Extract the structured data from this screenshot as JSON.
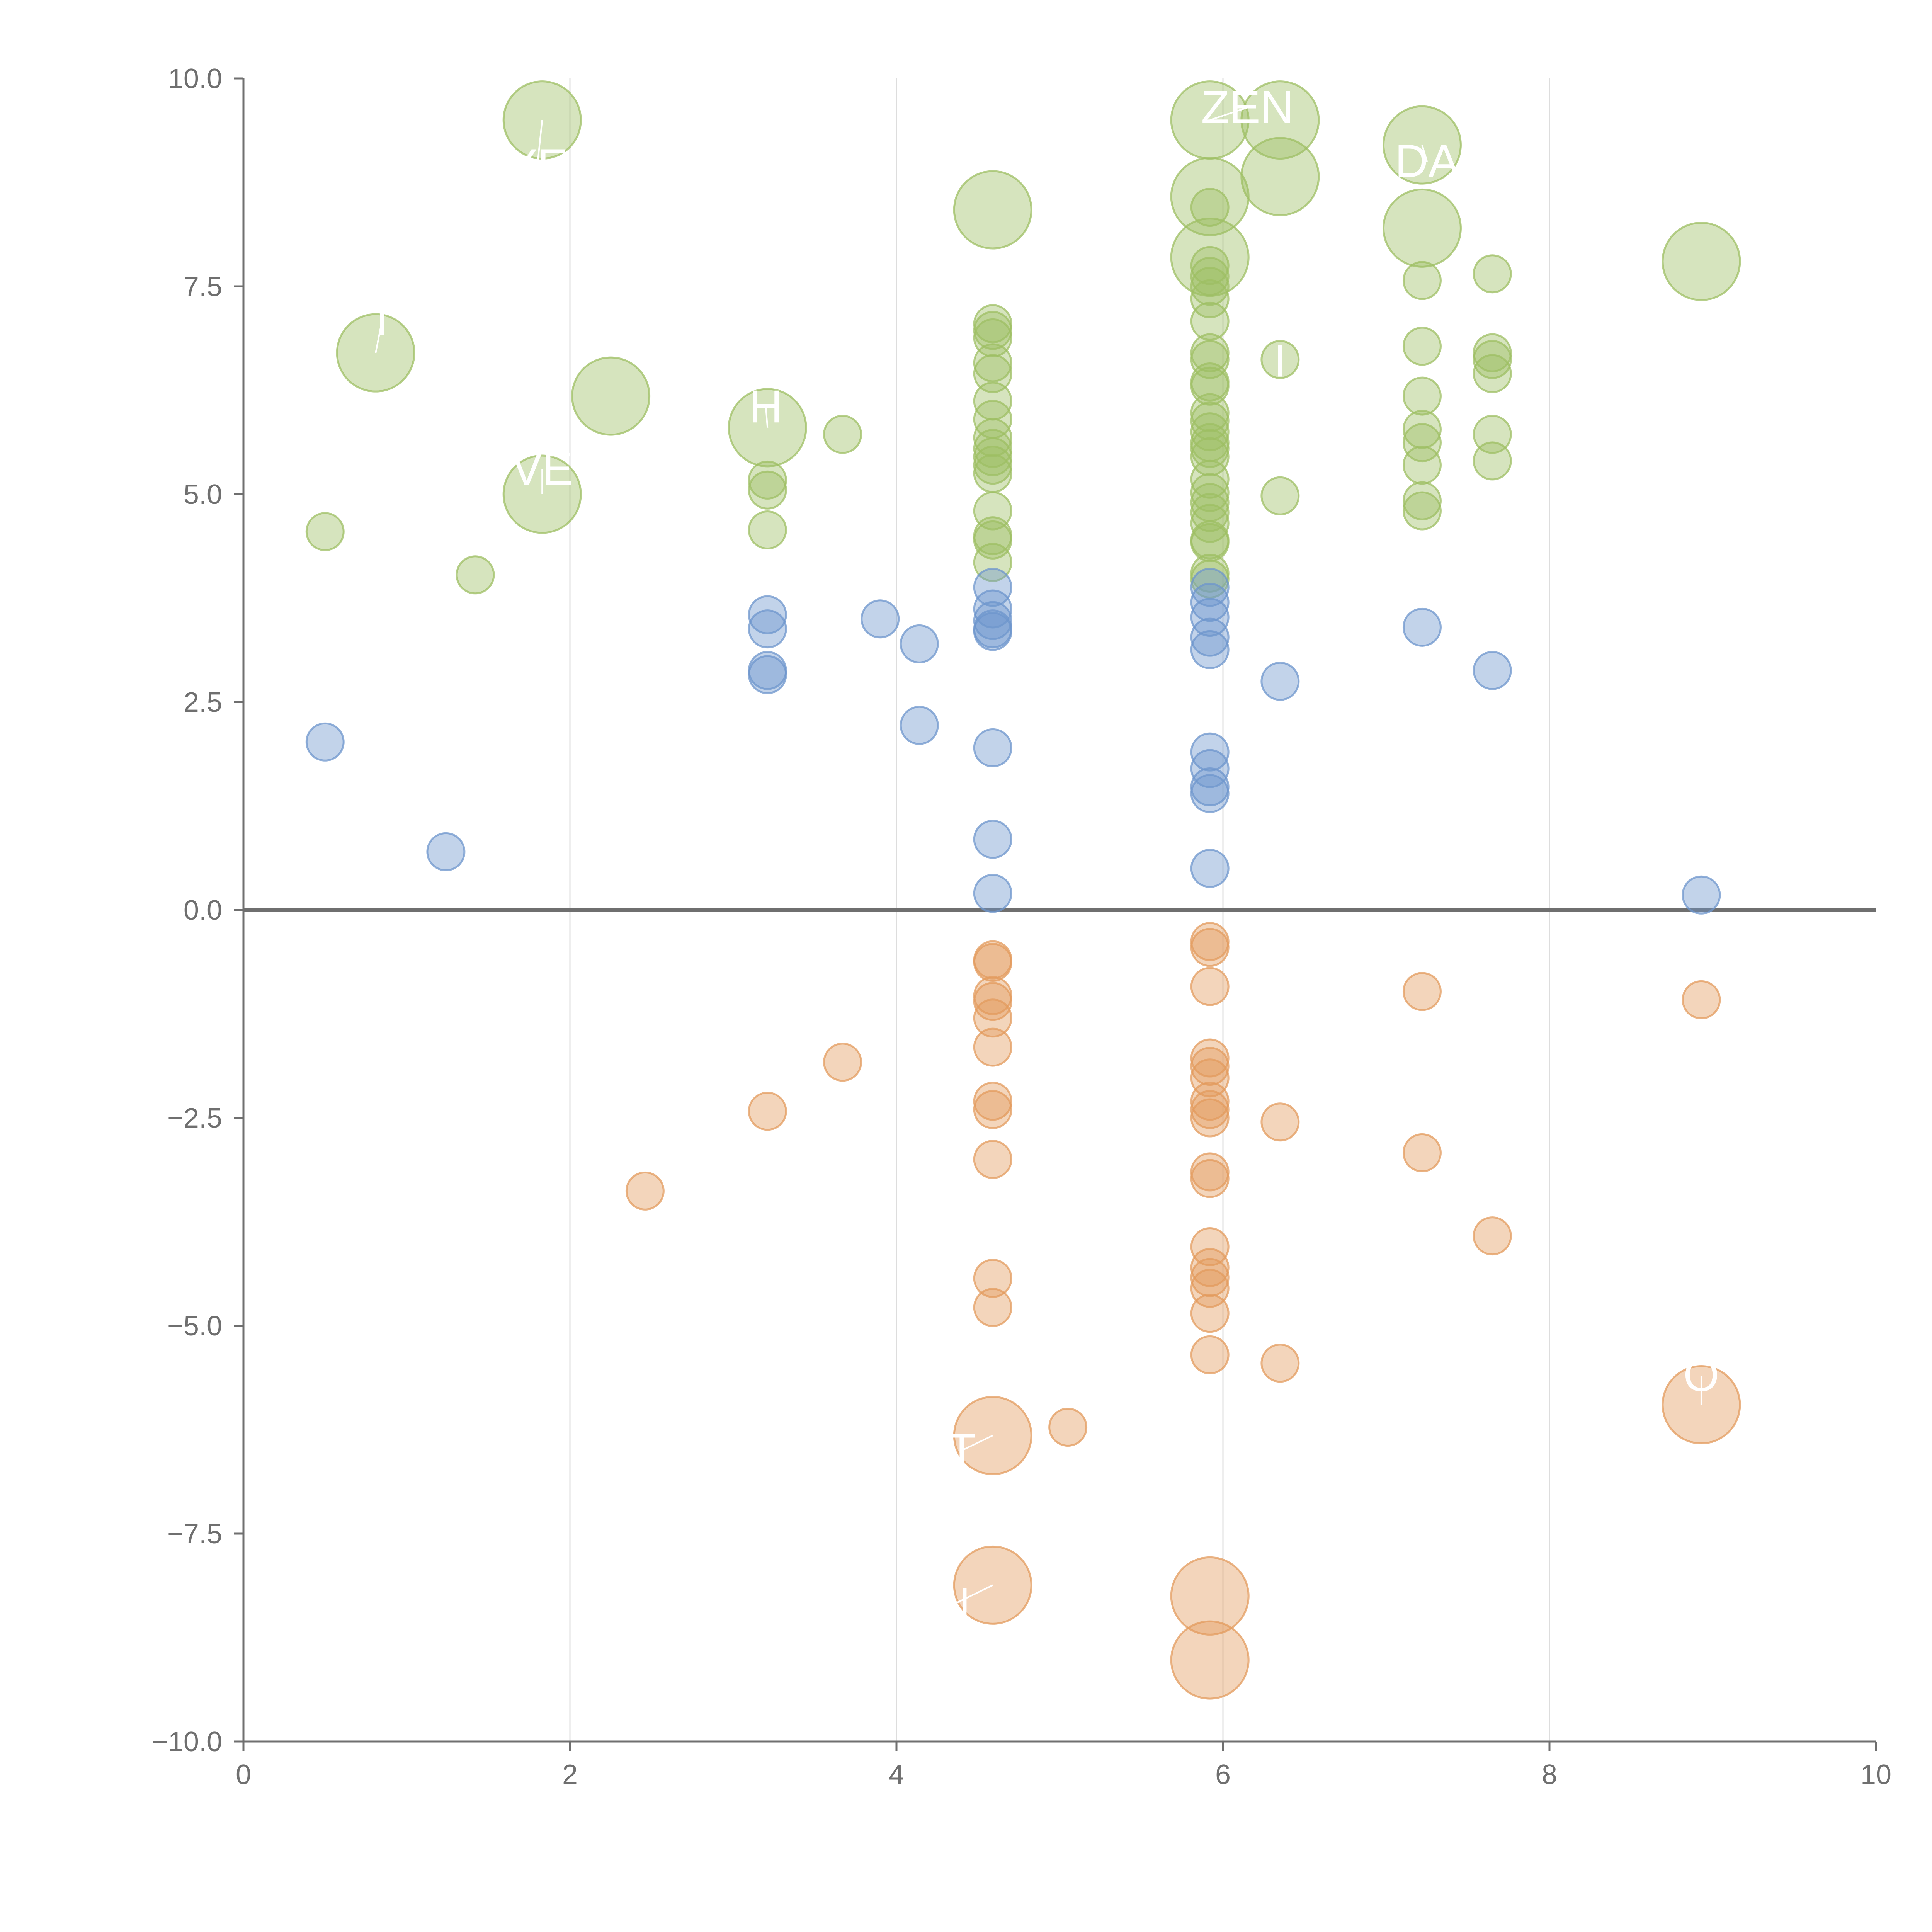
{
  "chart_data": {
    "type": "scatter",
    "title": "",
    "xlabel": "",
    "ylabel": "",
    "xlim": [
      0,
      10
    ],
    "ylim": [
      -10,
      10
    ],
    "grid": "vertical",
    "zero_line": true,
    "legend": "none",
    "x_ticks": [
      "0",
      "2",
      "4",
      "6",
      "8",
      "10"
    ],
    "y_ticks": [
      "10.0",
      "7.5",
      "5.0",
      "2.5",
      "0.0",
      "−2.5",
      "−5.0",
      "−7.5",
      "−10.0"
    ],
    "colors": {
      "green": "#9dbf63",
      "blue": "#6e95cc",
      "orange": "#e39b5e",
      "axis": "#6f6f6f",
      "grid": "#dddddd",
      "annotation": "#ffffff"
    },
    "series": [
      {
        "name": "green",
        "color": "#9dbf63",
        "points": [
          [
            0.5,
            4.55,
            1
          ],
          [
            1.42,
            4.03,
            1
          ],
          [
            0.81,
            6.7,
            2
          ],
          [
            1.83,
            9.5,
            2
          ],
          [
            1.83,
            5.0,
            2
          ],
          [
            2.25,
            6.18,
            2
          ],
          [
            3.21,
            5.8,
            2
          ],
          [
            3.21,
            5.17,
            1
          ],
          [
            3.21,
            5.05,
            1
          ],
          [
            3.21,
            4.57,
            1
          ],
          [
            3.67,
            5.72,
            1
          ],
          [
            4.59,
            8.42,
            2
          ],
          [
            4.59,
            7.05,
            1
          ],
          [
            4.59,
            6.97,
            1
          ],
          [
            4.59,
            6.88,
            1
          ],
          [
            4.59,
            6.58,
            1
          ],
          [
            4.59,
            6.45,
            1
          ],
          [
            4.59,
            6.12,
            1
          ],
          [
            4.59,
            5.9,
            1
          ],
          [
            4.59,
            5.68,
            1
          ],
          [
            4.59,
            5.55,
            1
          ],
          [
            4.59,
            5.45,
            1
          ],
          [
            4.59,
            5.35,
            1
          ],
          [
            4.59,
            5.25,
            1
          ],
          [
            4.59,
            4.8,
            1
          ],
          [
            4.59,
            4.5,
            1
          ],
          [
            4.59,
            4.45,
            1
          ],
          [
            4.59,
            4.18,
            1
          ],
          [
            5.92,
            9.5,
            2
          ],
          [
            5.92,
            8.58,
            2
          ],
          [
            5.92,
            8.45,
            1
          ],
          [
            5.92,
            7.85,
            2
          ],
          [
            5.92,
            7.75,
            1
          ],
          [
            5.92,
            7.62,
            1
          ],
          [
            5.92,
            7.5,
            1
          ],
          [
            5.92,
            7.35,
            1
          ],
          [
            5.92,
            7.08,
            1
          ],
          [
            5.92,
            6.7,
            1
          ],
          [
            5.92,
            6.62,
            1
          ],
          [
            5.92,
            6.35,
            1
          ],
          [
            5.92,
            6.3,
            1
          ],
          [
            5.92,
            5.98,
            1
          ],
          [
            5.92,
            5.88,
            1
          ],
          [
            5.92,
            5.75,
            1
          ],
          [
            5.92,
            5.62,
            1
          ],
          [
            5.92,
            5.55,
            1
          ],
          [
            5.92,
            5.45,
            1
          ],
          [
            5.92,
            5.18,
            1
          ],
          [
            5.92,
            5.02,
            1
          ],
          [
            5.92,
            4.9,
            1
          ],
          [
            5.92,
            4.78,
            1
          ],
          [
            5.92,
            4.65,
            1
          ],
          [
            5.92,
            4.45,
            1
          ],
          [
            5.92,
            4.42,
            1
          ],
          [
            5.92,
            4.05,
            1
          ],
          [
            5.92,
            3.98,
            1
          ],
          [
            6.35,
            9.5,
            2
          ],
          [
            6.35,
            8.82,
            2
          ],
          [
            6.35,
            6.62,
            1
          ],
          [
            6.35,
            4.98,
            1
          ],
          [
            7.22,
            9.2,
            2
          ],
          [
            7.22,
            8.2,
            2
          ],
          [
            7.22,
            7.57,
            1
          ],
          [
            7.22,
            6.78,
            1
          ],
          [
            7.22,
            6.18,
            1
          ],
          [
            7.22,
            5.78,
            1
          ],
          [
            7.22,
            5.62,
            1
          ],
          [
            7.22,
            5.35,
            1
          ],
          [
            7.22,
            4.92,
            1
          ],
          [
            7.22,
            4.8,
            1
          ],
          [
            7.65,
            7.65,
            1
          ],
          [
            7.65,
            6.7,
            1
          ],
          [
            7.65,
            6.62,
            1
          ],
          [
            7.65,
            6.45,
            1
          ],
          [
            7.65,
            5.72,
            1
          ],
          [
            7.65,
            5.4,
            1
          ],
          [
            8.93,
            7.8,
            2
          ]
        ]
      },
      {
        "name": "blue",
        "color": "#6e95cc",
        "points": [
          [
            0.5,
            2.02,
            1
          ],
          [
            1.24,
            0.7,
            1
          ],
          [
            3.21,
            3.55,
            1
          ],
          [
            3.21,
            3.38,
            1
          ],
          [
            3.21,
            2.88,
            1
          ],
          [
            3.21,
            2.83,
            1
          ],
          [
            3.9,
            3.5,
            1
          ],
          [
            4.14,
            3.2,
            1
          ],
          [
            4.14,
            2.22,
            1
          ],
          [
            4.59,
            3.88,
            1
          ],
          [
            4.59,
            3.62,
            1
          ],
          [
            4.59,
            3.48,
            1
          ],
          [
            4.59,
            3.38,
            1
          ],
          [
            4.59,
            3.35,
            1
          ],
          [
            4.59,
            1.95,
            1
          ],
          [
            4.59,
            0.85,
            1
          ],
          [
            4.59,
            0.2,
            1
          ],
          [
            5.92,
            3.88,
            1
          ],
          [
            5.92,
            3.7,
            1
          ],
          [
            5.92,
            3.52,
            1
          ],
          [
            5.92,
            3.28,
            1
          ],
          [
            5.92,
            3.13,
            1
          ],
          [
            5.92,
            1.9,
            1
          ],
          [
            5.92,
            1.7,
            1
          ],
          [
            5.92,
            1.48,
            1
          ],
          [
            5.92,
            1.4,
            1
          ],
          [
            5.92,
            0.5,
            1
          ],
          [
            6.35,
            2.75,
            1
          ],
          [
            7.22,
            3.4,
            1
          ],
          [
            7.65,
            2.88,
            1
          ],
          [
            8.93,
            0.18,
            1
          ]
        ]
      },
      {
        "name": "orange",
        "color": "#e39b5e",
        "points": [
          [
            2.46,
            -3.38,
            1
          ],
          [
            3.21,
            -2.42,
            1
          ],
          [
            3.67,
            -1.83,
            1
          ],
          [
            4.59,
            -0.6,
            1
          ],
          [
            4.59,
            -0.63,
            1
          ],
          [
            4.59,
            -1.03,
            1
          ],
          [
            4.59,
            -1.1,
            1
          ],
          [
            4.59,
            -1.3,
            1
          ],
          [
            4.59,
            -1.65,
            1
          ],
          [
            4.59,
            -2.3,
            1
          ],
          [
            4.59,
            -2.4,
            1
          ],
          [
            4.59,
            -3.0,
            1
          ],
          [
            4.59,
            -4.43,
            1
          ],
          [
            4.59,
            -4.78,
            1
          ],
          [
            4.59,
            -6.32,
            2
          ],
          [
            4.59,
            -8.12,
            2
          ],
          [
            5.05,
            -6.22,
            1
          ],
          [
            5.92,
            -0.38,
            1
          ],
          [
            5.92,
            -0.45,
            1
          ],
          [
            5.92,
            -0.92,
            1
          ],
          [
            5.92,
            -1.78,
            1
          ],
          [
            5.92,
            -1.88,
            1
          ],
          [
            5.92,
            -2.02,
            1
          ],
          [
            5.92,
            -2.3,
            1
          ],
          [
            5.92,
            -2.4,
            1
          ],
          [
            5.92,
            -2.5,
            1
          ],
          [
            5.92,
            -3.15,
            1
          ],
          [
            5.92,
            -3.23,
            1
          ],
          [
            5.92,
            -4.05,
            1
          ],
          [
            5.92,
            -4.3,
            1
          ],
          [
            5.92,
            -4.42,
            1
          ],
          [
            5.92,
            -4.55,
            1
          ],
          [
            5.92,
            -4.85,
            1
          ],
          [
            5.92,
            -5.35,
            1
          ],
          [
            5.92,
            -8.25,
            2
          ],
          [
            5.92,
            -9.02,
            2
          ],
          [
            6.35,
            -2.55,
            1
          ],
          [
            6.35,
            -5.45,
            1
          ],
          [
            7.22,
            -0.98,
            1
          ],
          [
            7.22,
            -2.92,
            1
          ],
          [
            7.65,
            -3.92,
            1
          ],
          [
            8.93,
            -1.08,
            1
          ],
          [
            8.93,
            -5.95,
            2
          ]
        ]
      }
    ],
    "annotations": [
      {
        "text": "ZEN",
        "x": 6.15,
        "y": 9.65,
        "px": 5.92,
        "py": 9.5
      },
      {
        "text": "DA",
        "x": 7.25,
        "y": 9.0,
        "px": 7.22,
        "py": 9.2
      },
      {
        "text": "YE",
        "x": 1.8,
        "y": 8.95,
        "px": 1.83,
        "py": 9.5
      },
      {
        "text": "T",
        "x": 0.85,
        "y": 7.1,
        "px": 0.81,
        "py": 6.7
      },
      {
        "text": "H",
        "x": 3.2,
        "y": 6.05,
        "px": 3.21,
        "py": 5.8
      },
      {
        "text": "VE",
        "x": 1.83,
        "y": 5.3,
        "px": 1.83,
        "py": 5.0
      },
      {
        "text": "I",
        "x": 6.35,
        "y": 6.6,
        "px": 6.35,
        "py": 6.62
      },
      {
        "text": "T",
        "x": 4.4,
        "y": -6.5,
        "px": 4.59,
        "py": -6.32
      },
      {
        "text": "N",
        "x": 4.35,
        "y": -8.35,
        "px": 4.59,
        "py": -8.12
      },
      {
        "text": "O",
        "x": 8.93,
        "y": -5.6,
        "px": 8.93,
        "py": -5.95
      }
    ]
  }
}
